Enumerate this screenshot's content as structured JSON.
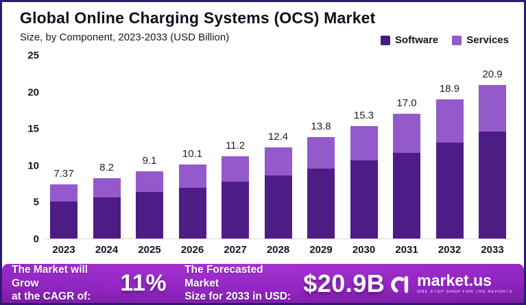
{
  "header": {
    "title": "Global Online Charging Systems (OCS) Market",
    "subtitle": "Size, by Component, 2023-2033 (USD Billion)"
  },
  "legend": {
    "items": [
      {
        "label": "Software",
        "color": "#471a7e"
      },
      {
        "label": "Services",
        "color": "#9459cb"
      }
    ]
  },
  "chart_data": {
    "type": "bar",
    "stacked": true,
    "title": "Global Online Charging Systems (OCS) Market",
    "subtitle": "Size, by Component, 2023-2033 (USD Billion)",
    "categories": [
      "2023",
      "2024",
      "2025",
      "2026",
      "2027",
      "2028",
      "2029",
      "2030",
      "2031",
      "2032",
      "2033"
    ],
    "series": [
      {
        "name": "Software",
        "color": "#4e1c85",
        "values": [
          5.0,
          5.6,
          6.3,
          6.9,
          7.7,
          8.6,
          9.5,
          10.6,
          11.7,
          13.1,
          14.6
        ]
      },
      {
        "name": "Services",
        "color": "#9459cb",
        "values": [
          2.37,
          2.6,
          2.8,
          3.2,
          3.5,
          3.8,
          4.3,
          4.7,
          5.3,
          5.8,
          6.3
        ]
      }
    ],
    "totals": [
      7.37,
      8.2,
      9.1,
      10.1,
      11.2,
      12.4,
      13.8,
      15.3,
      17.0,
      18.9,
      20.9
    ],
    "total_labels": [
      "7.37",
      "8.2",
      "9.1",
      "10.1",
      "11.2",
      "12.4",
      "13.8",
      "15.3",
      "17.0",
      "18.9",
      "20.9"
    ],
    "ylabel": "",
    "xlabel": "",
    "ylim": [
      0,
      25
    ],
    "yticks": [
      0,
      5,
      10,
      15,
      20,
      25
    ],
    "grid": false,
    "legend_position": "top-right"
  },
  "banner": {
    "background_from": "#ad37d9",
    "background_mid": "#9226c2",
    "background_to": "#671389",
    "cagr_label": "The Market will Grow\nat the CAGR of:",
    "cagr_value": "11%",
    "forecast_label": "The Forecasted Market\nSize for 2033 in USD:",
    "forecast_value": "$20.9B",
    "logo_text": "market.us",
    "logo_tagline": "One Stop Shop For The Reports"
  }
}
